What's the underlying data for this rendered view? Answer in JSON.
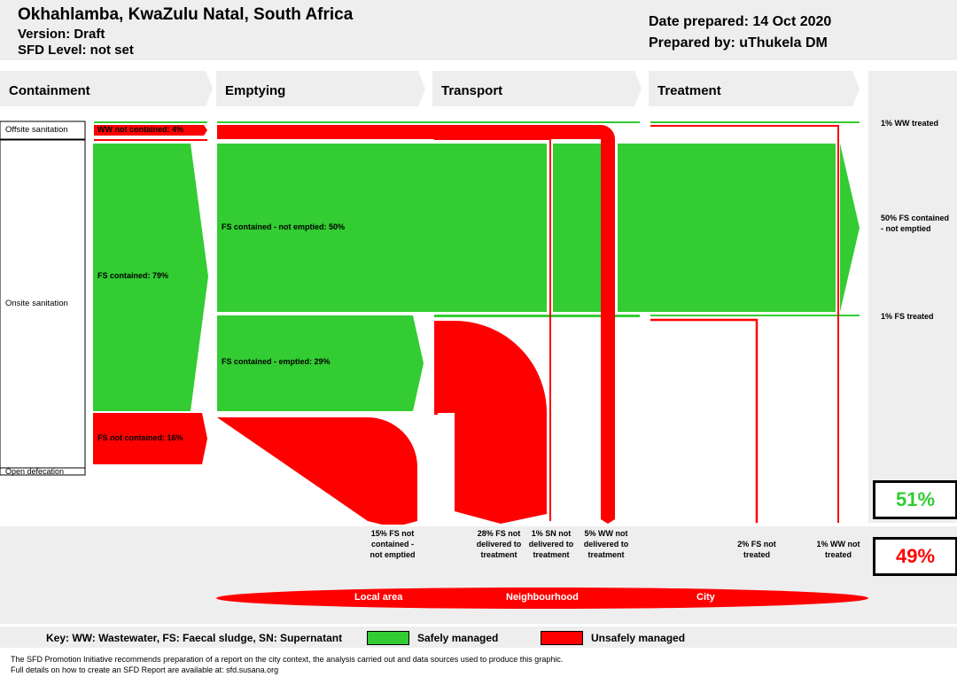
{
  "header": {
    "title": "Okhahlamba, KwaZulu Natal, South Africa",
    "version": "Version: Draft",
    "sfd_level": "SFD Level: not set",
    "date": "Date prepared: 14 Oct 2020",
    "prepared_by": "Prepared by: uThukela DM"
  },
  "stages": [
    "Containment",
    "Emptying",
    "Transport",
    "Treatment"
  ],
  "side_labels": {
    "offsite": "Offsite sanitation",
    "onsite": "Onsite sanitation",
    "open": "Open defecation"
  },
  "flow_labels": {
    "ww_not_contained": "WW not contained: 4%",
    "fs_contained": "FS contained: 79%",
    "fs_not_contained": "FS not contained: 16%",
    "fs_not_emptied": "FS contained - not emptied: 50%",
    "fs_emptied": "FS contained - emptied: 29%"
  },
  "right_labels": {
    "ww_treated": "1% WW treated",
    "fs_not_emptied": "50% FS contained - not emptied",
    "fs_treated": "1% FS treated"
  },
  "outcomes": [
    "15% FS not contained - not emptied",
    "28% FS not delivered to treatment",
    "1% SN not delivered to treatment",
    "5% WW not delivered to treatment",
    "2% FS not treated",
    "1% WW not treated"
  ],
  "summary": {
    "safe": "51%",
    "unsafe": "49%",
    "safe_value": 51,
    "unsafe_value": 49
  },
  "banner": [
    "Local area",
    "Neighbourhood",
    "City"
  ],
  "key": {
    "text": "Key: WW: Wastewater, FS: Faecal sludge, SN: Supernatant",
    "safe": "Safely managed",
    "unsafe": "Unsafely managed"
  },
  "footer": [
    "The SFD Promotion Initiative recommends preparation of a report on the city context, the analysis carried out and data sources used to produce this graphic.",
    "Full details on how to create an SFD Report are available at: sfd.susana.org"
  ],
  "colors": {
    "green": "#33cc33",
    "red": "#ff0000",
    "grey": "#eeeeee"
  }
}
